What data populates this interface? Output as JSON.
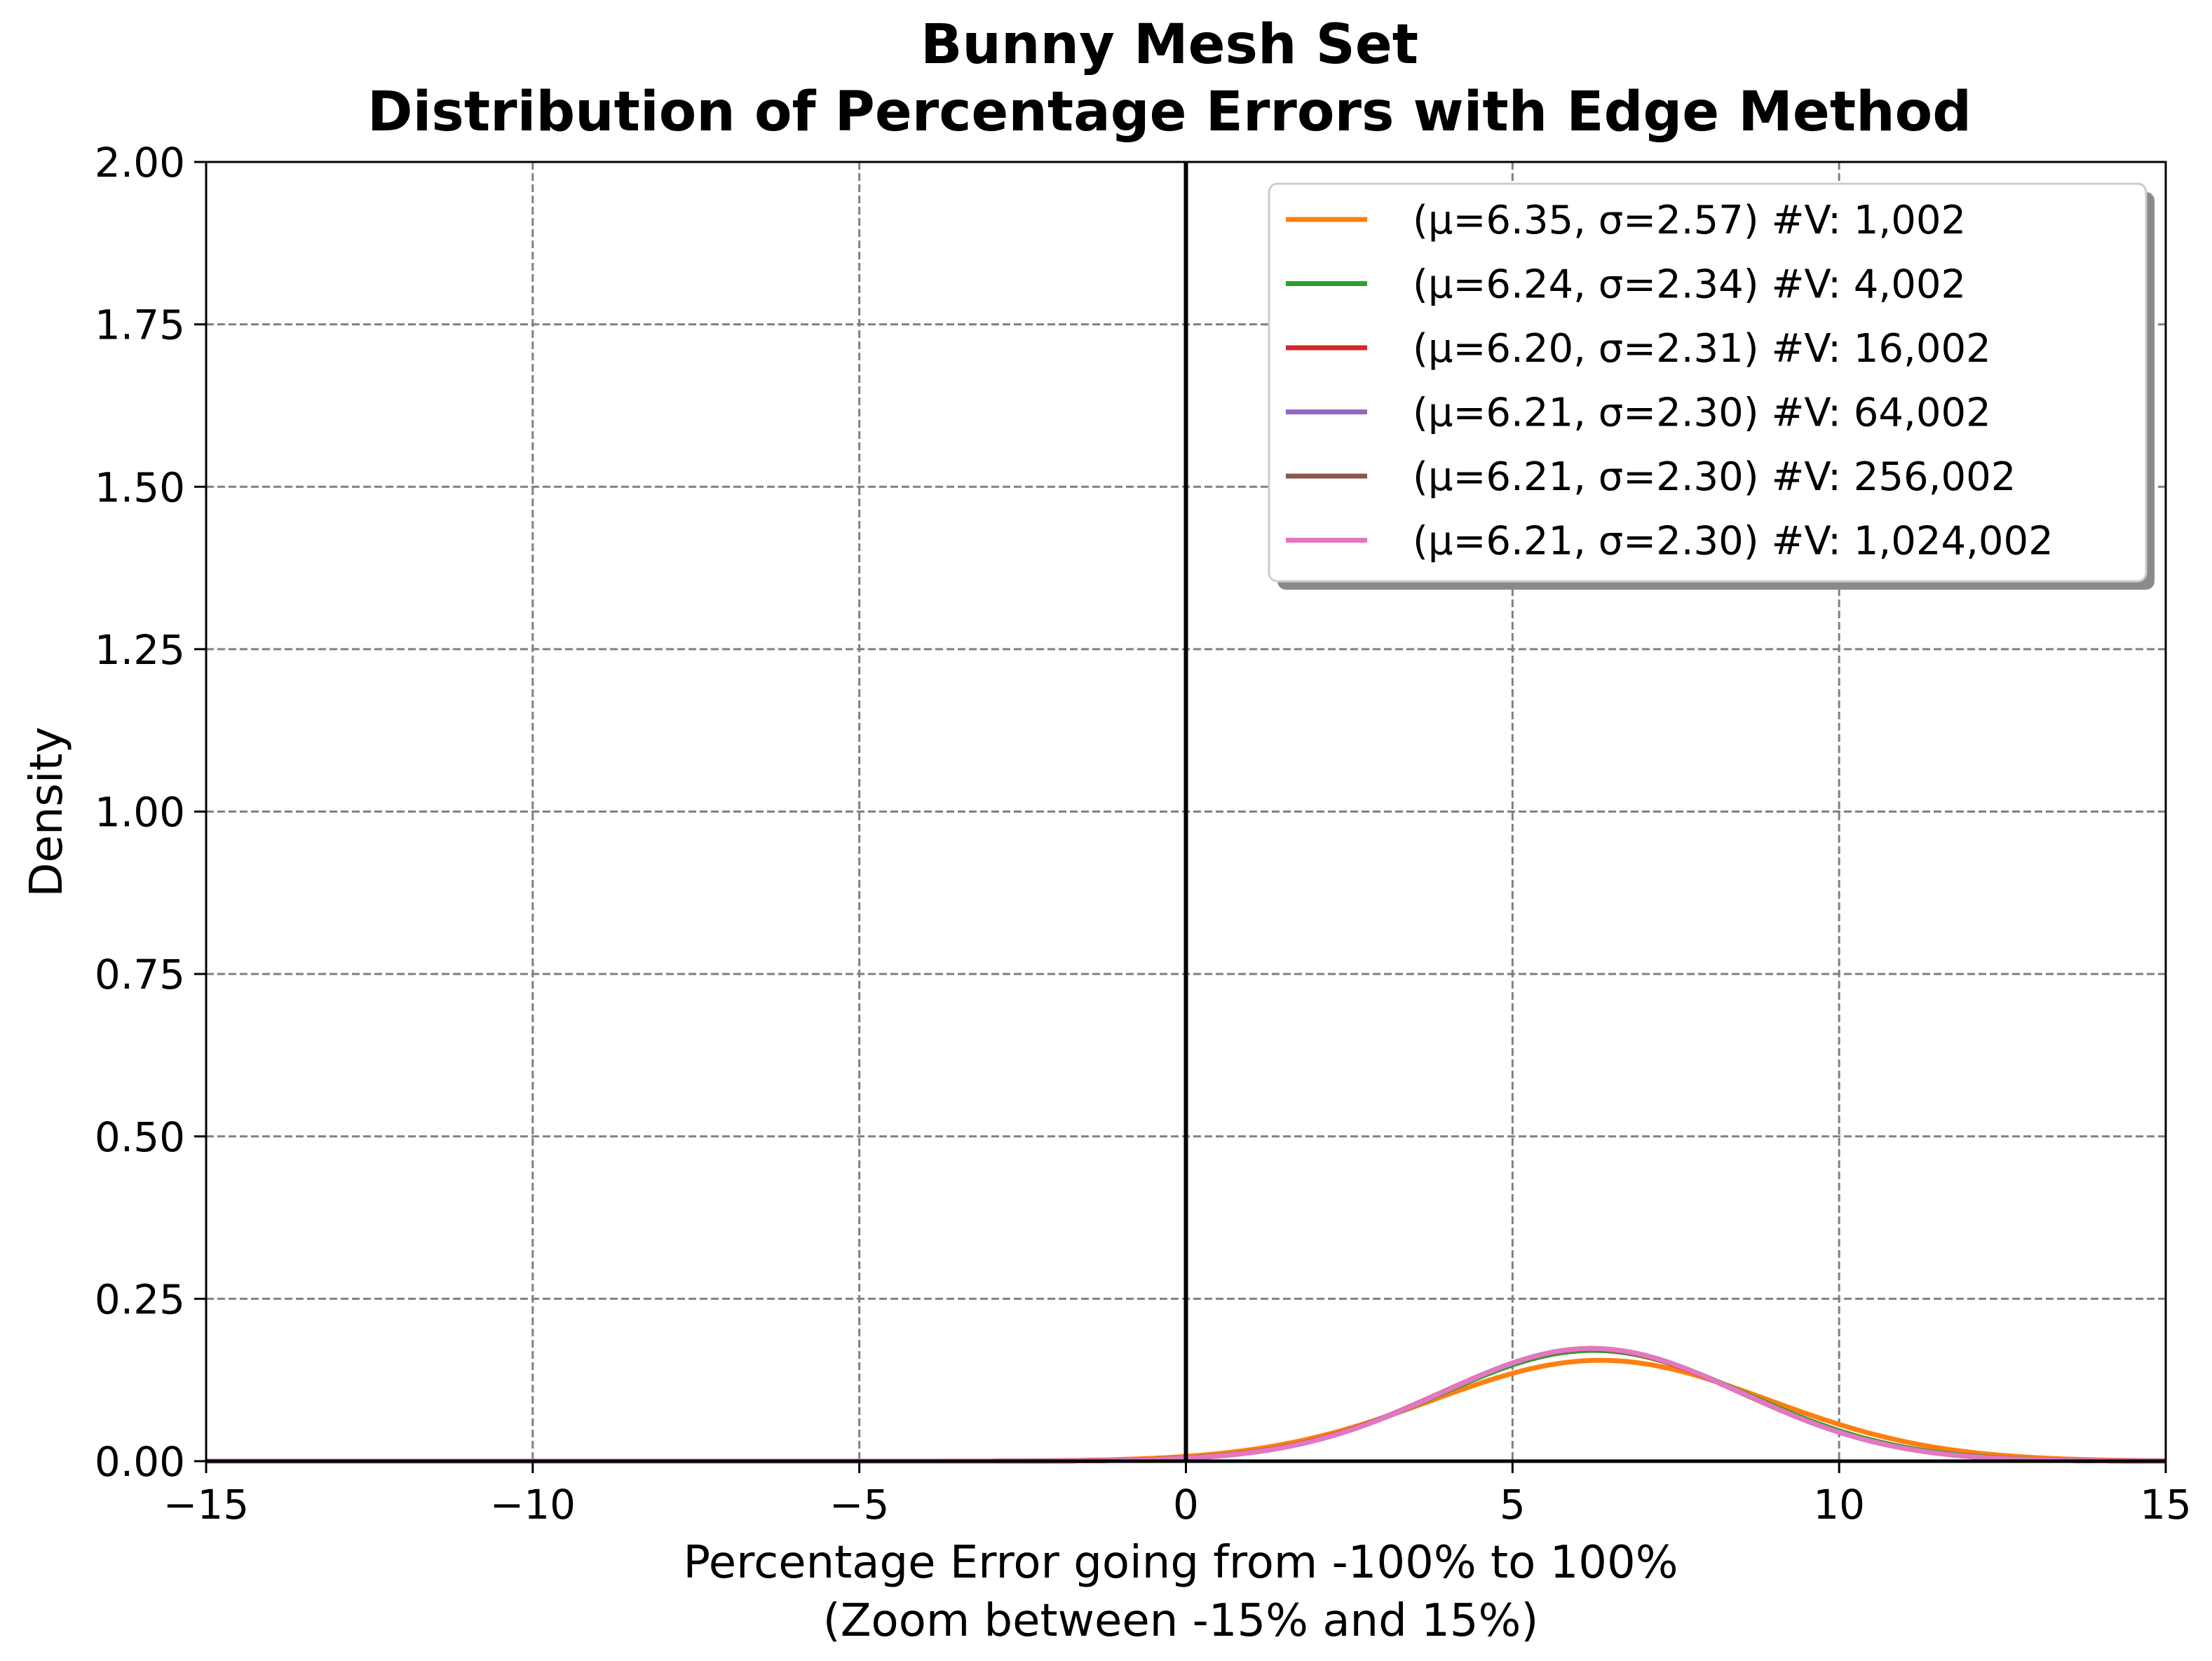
{
  "chart_data": {
    "type": "line",
    "title": "Bunny Mesh Set",
    "subtitle": "Distribution of Percentage Errors with Edge Method",
    "xlabel": "Percentage Error going from -100% to 100%",
    "xlabel_sub": "(Zoom between -15% and 15%)",
    "ylabel": "Density",
    "xlim": [
      -15,
      15
    ],
    "ylim": [
      0,
      2
    ],
    "x_ticks": [
      -15,
      -10,
      -5,
      0,
      5,
      10,
      15
    ],
    "x_tick_labels": [
      "−15",
      "−10",
      "−5",
      "0",
      "5",
      "10",
      "15"
    ],
    "y_ticks": [
      0,
      0.25,
      0.5,
      0.75,
      1.0,
      1.25,
      1.5,
      1.75,
      2.0
    ],
    "y_tick_labels": [
      "0.00",
      "0.25",
      "0.50",
      "0.75",
      "1.00",
      "1.25",
      "1.50",
      "1.75",
      "2.00"
    ],
    "grid": true,
    "legend_position": "top-right",
    "vertical_line_at_x": 0,
    "series": [
      {
        "name": "(μ=6.35, σ=2.57) #V: 1,002",
        "mean": 6.35,
        "std": 2.57,
        "color": "#ff7f0e"
      },
      {
        "name": "(μ=6.24, σ=2.34) #V: 4,002",
        "mean": 6.24,
        "std": 2.34,
        "color": "#2ca02c"
      },
      {
        "name": "(μ=6.20, σ=2.31) #V: 16,002",
        "mean": 6.2,
        "std": 2.31,
        "color": "#d62728"
      },
      {
        "name": "(μ=6.21, σ=2.30) #V: 64,002",
        "mean": 6.21,
        "std": 2.3,
        "color": "#9467bd"
      },
      {
        "name": "(μ=6.21, σ=2.30) #V: 256,002",
        "mean": 6.21,
        "std": 2.3,
        "color": "#8c564b"
      },
      {
        "name": "(μ=6.21, σ=2.30) #V: 1,024,002",
        "mean": 6.21,
        "std": 2.3,
        "color": "#e377c2"
      }
    ]
  }
}
